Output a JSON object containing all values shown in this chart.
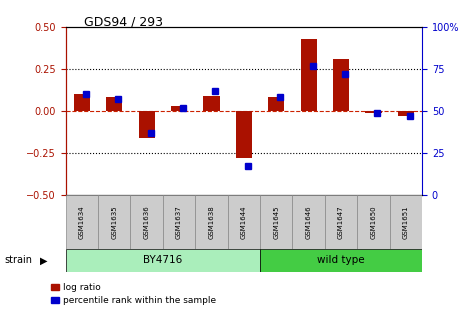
{
  "title": "GDS94 / 293",
  "samples": [
    "GSM1634",
    "GSM1635",
    "GSM1636",
    "GSM1637",
    "GSM1638",
    "GSM1644",
    "GSM1645",
    "GSM1646",
    "GSM1647",
    "GSM1650",
    "GSM1651"
  ],
  "log_ratio": [
    0.1,
    0.08,
    -0.16,
    0.03,
    0.09,
    -0.28,
    0.08,
    0.43,
    0.31,
    -0.01,
    -0.03
  ],
  "percentile_rank": [
    60,
    57,
    37,
    52,
    62,
    17,
    58,
    77,
    72,
    49,
    47
  ],
  "group_BY4716_count": 6,
  "group_wildtype_count": 5,
  "group_BY4716_label": "BY4716",
  "group_wildtype_label": "wild type",
  "group_BY4716_color": "#aaeebb",
  "group_wildtype_color": "#44cc44",
  "ylim_left": [
    -0.5,
    0.5
  ],
  "ylim_right": [
    0,
    100
  ],
  "yticks_left": [
    -0.5,
    -0.25,
    0.0,
    0.25,
    0.5
  ],
  "yticks_right": [
    0,
    25,
    50,
    75,
    100
  ],
  "bar_color_red": "#aa1100",
  "bar_color_blue": "#0000cc",
  "zero_line_color": "#cc2200",
  "grid_color": "#000000",
  "strain_label": "strain",
  "legend_log_ratio": "log ratio",
  "legend_percentile": "percentile rank within the sample",
  "sample_box_color": "#cccccc",
  "bar_width": 0.5,
  "blue_marker_size": 5.0
}
